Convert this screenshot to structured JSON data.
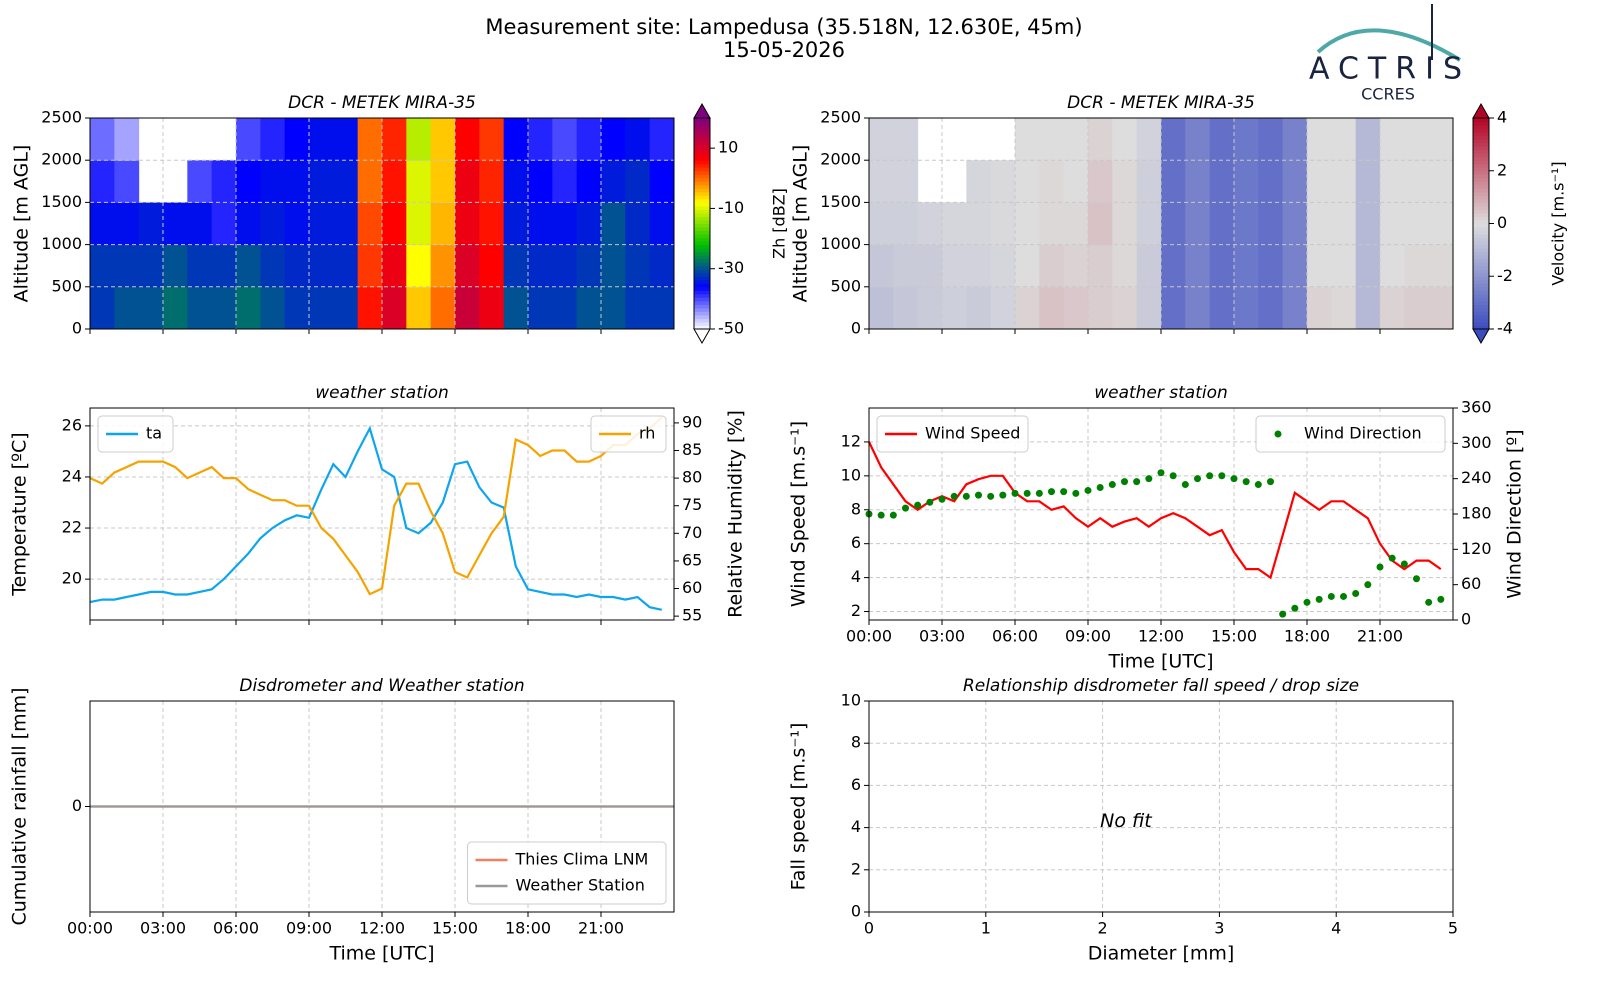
{
  "title": "Measurement site: Lampedusa (35.518N, 12.630E, 45m)",
  "subtitle": "15-05-2026",
  "logo": {
    "name": "ACTRIS",
    "sub": "CCRES"
  },
  "chart_data": [
    {
      "type": "heatmap",
      "title": "DCR - METEK MIRA-35",
      "ylabel": "Altitude [m AGL]",
      "xlim": [
        0,
        24
      ],
      "xticks": [
        0,
        3,
        6,
        9,
        12,
        15,
        18,
        21
      ],
      "xticklabels": false,
      "ylim": [
        0,
        2500
      ],
      "yticks": [
        0,
        500,
        1000,
        1500,
        2000,
        2500
      ],
      "grid": true,
      "z": [
        [
          -32,
          -30,
          -30,
          -28,
          -30,
          -30,
          -28,
          -30,
          -32,
          -32,
          -32,
          5,
          10,
          -5,
          0,
          12,
          8,
          -30,
          -32,
          -32,
          -30,
          -30,
          -32,
          -32
        ],
        [
          -32,
          -32,
          -32,
          -30,
          -32,
          -32,
          -30,
          -32,
          -33,
          -33,
          -33,
          3,
          8,
          -8,
          -2,
          10,
          6,
          -32,
          -33,
          -33,
          -32,
          -30,
          -32,
          -33
        ],
        [
          -35,
          -35,
          -34,
          -35,
          -35,
          -38,
          -35,
          -34,
          -35,
          -34,
          -34,
          2,
          6,
          -10,
          -4,
          8,
          5,
          -34,
          -35,
          -35,
          -34,
          -30,
          -33,
          -35
        ],
        [
          -38,
          -40,
          null,
          null,
          -40,
          -38,
          -36,
          -35,
          -35,
          -34,
          -34,
          0,
          5,
          -10,
          -5,
          8,
          4,
          -35,
          -36,
          -38,
          -36,
          -34,
          -33,
          -36
        ],
        [
          -42,
          -45,
          null,
          null,
          null,
          null,
          -40,
          -38,
          -36,
          -35,
          -35,
          0,
          4,
          -12,
          -5,
          6,
          3,
          -36,
          -38,
          -40,
          -38,
          -36,
          -35,
          -38
        ]
      ],
      "colorbar": {
        "label": "Zh [dBZ]",
        "lim": [
          -50,
          20
        ],
        "ticks": [
          -50,
          -30,
          -10,
          10
        ],
        "colormap": [
          "#ffffff",
          "#0000ff",
          "#00c000",
          "#ffff00",
          "#ff0000",
          "#800080"
        ]
      }
    },
    {
      "type": "heatmap",
      "title": "DCR - METEK MIRA-35",
      "ylabel": "Altitude [m AGL]",
      "xlim": [
        0,
        24
      ],
      "xticks": [
        0,
        3,
        6,
        9,
        12,
        15,
        18,
        21
      ],
      "xticklabels": false,
      "ylim": [
        0,
        2500
      ],
      "yticks": [
        0,
        500,
        1000,
        1500,
        2000,
        2500
      ],
      "grid": true,
      "z": [
        [
          -0.8,
          -0.6,
          -0.5,
          -0.4,
          -0.5,
          -0.3,
          0.2,
          0.5,
          0.4,
          0.3,
          0.2,
          -0.5,
          -3,
          -2.5,
          -3,
          -2.8,
          -3,
          -2.5,
          0.2,
          0.1,
          -1,
          0.2,
          0.3,
          0.3
        ],
        [
          -0.6,
          -0.5,
          -0.5,
          -0.3,
          -0.3,
          -0.2,
          0,
          0.3,
          0.2,
          0.3,
          0.1,
          -0.5,
          -3,
          -2.5,
          -3,
          -2.8,
          -3,
          -2.5,
          0,
          0,
          -1,
          0,
          0.1,
          0.1
        ],
        [
          -0.4,
          -0.4,
          -0.3,
          -0.2,
          -0.2,
          -0.1,
          0,
          0.1,
          0.1,
          0.5,
          0.1,
          -0.4,
          -3,
          -2.5,
          -3,
          -2.8,
          -3,
          -2.5,
          0,
          0,
          -1,
          0,
          0,
          0
        ],
        [
          -0.3,
          -0.3,
          null,
          null,
          -0.2,
          -0.1,
          0,
          0.1,
          0,
          0.4,
          0.1,
          -0.4,
          -3,
          -2.5,
          -3,
          -2.8,
          -3,
          -2.5,
          0,
          0,
          -1,
          0,
          0,
          0
        ],
        [
          -0.3,
          -0.3,
          null,
          null,
          null,
          null,
          0,
          0,
          0,
          0.2,
          0,
          -0.3,
          -3,
          -2.5,
          -3,
          -2.8,
          -3,
          -2.5,
          0,
          0,
          -1,
          0,
          0,
          0
        ]
      ],
      "colorbar": {
        "label": "Velocity [m.s⁻¹]",
        "lim": [
          -4,
          4
        ],
        "ticks": [
          -4,
          -2,
          0,
          2,
          4
        ],
        "colormap": [
          "#3b4cc0",
          "#dddddd",
          "#b40426"
        ]
      }
    },
    {
      "type": "line",
      "title": "weather station",
      "ylabel": "Temperature [ºC]",
      "y2label": "Relative Humidity [%]",
      "xlim": [
        0,
        24
      ],
      "xticks": [
        0,
        3,
        6,
        9,
        12,
        15,
        18,
        21
      ],
      "xticklabels": false,
      "ylim": [
        18.4,
        26.7
      ],
      "yticks": [
        20,
        22,
        24,
        26
      ],
      "y2lim": [
        54.3,
        92.7
      ],
      "y2ticks": [
        55,
        60,
        65,
        70,
        75,
        80,
        85,
        90
      ],
      "grid": true,
      "x": [
        0,
        0.5,
        1,
        1.5,
        2,
        2.5,
        3,
        3.5,
        4,
        4.5,
        5,
        5.5,
        6,
        6.5,
        7,
        7.5,
        8,
        8.5,
        9,
        9.5,
        10,
        10.5,
        11,
        11.5,
        12,
        12.5,
        13,
        13.5,
        14,
        14.5,
        15,
        15.5,
        16,
        16.5,
        17,
        17.5,
        18,
        18.5,
        19,
        19.5,
        20,
        20.5,
        21,
        21.5,
        22,
        22.5,
        23,
        23.5
      ],
      "series": [
        {
          "name": "ta",
          "color": "#0ea5ef",
          "kind": "line",
          "legend": "upper left",
          "values": [
            19.1,
            19.2,
            19.2,
            19.3,
            19.4,
            19.5,
            19.5,
            19.4,
            19.4,
            19.5,
            19.6,
            20.0,
            20.5,
            21.0,
            21.6,
            22.0,
            22.3,
            22.5,
            22.4,
            23.5,
            24.5,
            24.0,
            25.0,
            25.9,
            24.3,
            24.0,
            22.0,
            21.8,
            22.2,
            23.0,
            24.5,
            24.6,
            23.6,
            23.0,
            22.8,
            20.5,
            19.6,
            19.5,
            19.4,
            19.4,
            19.3,
            19.4,
            19.3,
            19.3,
            19.2,
            19.3,
            18.9,
            18.8
          ]
        },
        {
          "name": "rh",
          "color": "#f5a300",
          "kind": "line",
          "axis": "y2",
          "legend": "upper right",
          "values": [
            80,
            79,
            81,
            82,
            83,
            83,
            83,
            82,
            80,
            81,
            82,
            80,
            80,
            78,
            77,
            76,
            76,
            75,
            75,
            71,
            69,
            66,
            63,
            59,
            60,
            75,
            79,
            79,
            74,
            70,
            63,
            62,
            66,
            70,
            73,
            87,
            86,
            84,
            85,
            85,
            83,
            83,
            84,
            86,
            86,
            88,
            89,
            91
          ]
        }
      ]
    },
    {
      "type": "line",
      "title": "weather station",
      "ylabel": "Wind Speed [m.s⁻¹]",
      "y2label": "Wind Direction [º]",
      "xlabel": "Time [UTC]",
      "xlim": [
        0,
        24
      ],
      "xticks": [
        {
          "value": 0,
          "label": "00:00"
        },
        {
          "value": 3,
          "label": "03:00"
        },
        {
          "value": 6,
          "label": "06:00"
        },
        {
          "value": 9,
          "label": "09:00"
        },
        {
          "value": 12,
          "label": "12:00"
        },
        {
          "value": 15,
          "label": "15:00"
        },
        {
          "value": 18,
          "label": "18:00"
        },
        {
          "value": 21,
          "label": "21:00"
        }
      ],
      "ylim": [
        1.5,
        14
      ],
      "yticks": [
        2,
        4,
        6,
        8,
        10,
        12
      ],
      "y2lim": [
        0,
        360
      ],
      "y2ticks": [
        0,
        60,
        120,
        180,
        240,
        300,
        360
      ],
      "grid": true,
      "x": [
        0,
        0.5,
        1,
        1.5,
        2,
        2.5,
        3,
        3.5,
        4,
        4.5,
        5,
        5.5,
        6,
        6.5,
        7,
        7.5,
        8,
        8.5,
        9,
        9.5,
        10,
        10.5,
        11,
        11.5,
        12,
        12.5,
        13,
        13.5,
        14,
        14.5,
        15,
        15.5,
        16,
        16.5,
        17,
        17.5,
        18,
        18.5,
        19,
        19.5,
        20,
        20.5,
        21,
        21.5,
        22,
        22.5,
        23,
        23.5
      ],
      "series": [
        {
          "name": "Wind Speed",
          "color": "#ff0000",
          "kind": "line",
          "legend": "upper left",
          "values": [
            12,
            10.5,
            9.5,
            8.5,
            8,
            8.5,
            8.8,
            8.5,
            9.5,
            9.8,
            10,
            10,
            9,
            8.5,
            8.5,
            8,
            8.2,
            7.5,
            7,
            7.5,
            7,
            7.3,
            7.5,
            7,
            7.5,
            7.8,
            7.5,
            7,
            6.5,
            6.8,
            5.5,
            4.5,
            4.5,
            4,
            6.5,
            9,
            8.5,
            8,
            8.5,
            8.5,
            8,
            7.5,
            6,
            5,
            4.5,
            5,
            5,
            4.5
          ]
        },
        {
          "name": "Wind Direction",
          "color": "#008000",
          "kind": "scatter",
          "axis": "y2",
          "legend": "upper right",
          "values": [
            180,
            178,
            178,
            190,
            195,
            200,
            205,
            210,
            210,
            212,
            210,
            212,
            215,
            215,
            215,
            218,
            218,
            215,
            220,
            225,
            230,
            235,
            235,
            240,
            250,
            245,
            230,
            240,
            245,
            245,
            240,
            235,
            230,
            235,
            10,
            20,
            30,
            35,
            40,
            40,
            45,
            60,
            90,
            105,
            95,
            70,
            30,
            35
          ]
        }
      ]
    },
    {
      "type": "line",
      "title": "Disdrometer and Weather station",
      "ylabel": "Cumulative rainfall [mm]",
      "xlabel": "Time [UTC]",
      "xlim": [
        0,
        24
      ],
      "xticks": [
        {
          "value": 0,
          "label": "00:00"
        },
        {
          "value": 3,
          "label": "03:00"
        },
        {
          "value": 6,
          "label": "06:00"
        },
        {
          "value": 9,
          "label": "09:00"
        },
        {
          "value": 12,
          "label": "12:00"
        },
        {
          "value": 15,
          "label": "15:00"
        },
        {
          "value": 18,
          "label": "18:00"
        },
        {
          "value": 21,
          "label": "21:00"
        }
      ],
      "ylim": [
        -1,
        1
      ],
      "yticks": [
        0
      ],
      "grid": true,
      "x": [
        0,
        24
      ],
      "series": [
        {
          "name": "Thies Clima LNM",
          "color": "#f08060",
          "kind": "line",
          "legend": "lower right",
          "values": [
            0,
            0
          ]
        },
        {
          "name": "Weather Station",
          "color": "#999999",
          "kind": "line",
          "legend": "lower right",
          "values": [
            0,
            0
          ]
        }
      ]
    },
    {
      "type": "scatter",
      "title": "Relationship disdrometer fall speed / drop size",
      "ylabel": "Fall speed [m.s⁻¹]",
      "xlabel": "Diameter [mm]",
      "annotation": "No fit",
      "xlim": [
        0,
        5
      ],
      "xticks": [
        0,
        1,
        2,
        3,
        4,
        5
      ],
      "ylim": [
        0,
        10
      ],
      "yticks": [
        0,
        2,
        4,
        6,
        8,
        10
      ],
      "grid": true,
      "series": []
    }
  ]
}
